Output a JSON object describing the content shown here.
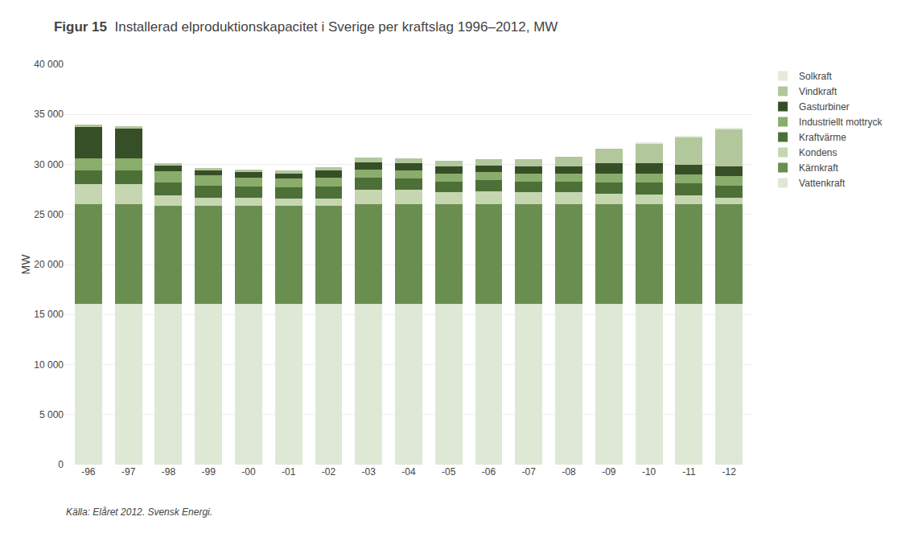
{
  "chart_data": {
    "type": "bar",
    "stacked": true,
    "title": "Figur 15",
    "subtitle": "Installerad elproduktionskapacitet i Sverige per kraftslag 1996–2012, MW",
    "y_label": "MW",
    "annotations": [
      "Källa: Elåret 2012. Svensk Energi."
    ],
    "categories": [
      "-96",
      "-97",
      "-98",
      "-99",
      "-00",
      "-01",
      "-02",
      "-03",
      "-04",
      "-05",
      "-06",
      "-07",
      "-08",
      "-09",
      "-10",
      "-11",
      "-12"
    ],
    "series": [
      {
        "name": "Vattenkraft",
        "color": "#dfe8d5",
        "values": [
          16100,
          16100,
          16100,
          16100,
          16100,
          16100,
          16100,
          16100,
          16100,
          16100,
          16100,
          16100,
          16100,
          16100,
          16100,
          16100,
          16100
        ]
      },
      {
        "name": "Kärnkraft",
        "color": "#6a8e50",
        "values": [
          9900,
          9900,
          9800,
          9800,
          9800,
          9800,
          9800,
          9900,
          9900,
          9900,
          9900,
          9900,
          9900,
          9900,
          9900,
          9900,
          9900
        ]
      },
      {
        "name": "Kondens",
        "color": "#c5d6b0",
        "values": [
          2000,
          2000,
          1000,
          800,
          800,
          700,
          700,
          1500,
          1500,
          1200,
          1300,
          1200,
          1200,
          1100,
          1000,
          900,
          700
        ]
      },
      {
        "name": "Kraftvärme",
        "color": "#4c7038",
        "values": [
          1400,
          1400,
          1300,
          1200,
          1100,
          1100,
          1200,
          1200,
          1100,
          1100,
          1100,
          1100,
          1100,
          1100,
          1200,
          1200,
          1200
        ]
      },
      {
        "name": "Industriellt mottryck",
        "color": "#8aad6c",
        "values": [
          1200,
          1200,
          1100,
          1000,
          900,
          900,
          900,
          800,
          800,
          800,
          800,
          800,
          800,
          900,
          900,
          900,
          900
        ]
      },
      {
        "name": "Gasturbiner",
        "color": "#374f26",
        "values": [
          3100,
          3000,
          600,
          500,
          500,
          500,
          700,
          700,
          700,
          700,
          700,
          700,
          700,
          1000,
          1000,
          1000,
          1000
        ]
      },
      {
        "name": "Vindkraft",
        "color": "#b2c79c",
        "values": [
          250,
          250,
          200,
          200,
          250,
          300,
          350,
          450,
          500,
          550,
          600,
          700,
          1000,
          1500,
          2000,
          2700,
          3700
        ]
      },
      {
        "name": "Solkraft",
        "color": "#e4eadc",
        "values": [
          0,
          0,
          0,
          0,
          0,
          0,
          0,
          0,
          0,
          0,
          0,
          0,
          0,
          0,
          50,
          100,
          150
        ]
      }
    ],
    "ylim": [
      0,
      40000
    ],
    "yticks": [
      0,
      {
        "value": 5000,
        "label": "5 000"
      },
      {
        "value": 10000,
        "label": "10 000"
      },
      {
        "value": 15000,
        "label": "15 000"
      },
      {
        "value": 20000,
        "label": "20 000"
      },
      {
        "value": 25000,
        "label": "25 000"
      },
      {
        "value": 30000,
        "label": "30 000"
      },
      {
        "value": 35000,
        "label": "35 000"
      },
      {
        "value": 40000,
        "label": "40 000"
      }
    ],
    "grid": true,
    "legend": "right"
  }
}
